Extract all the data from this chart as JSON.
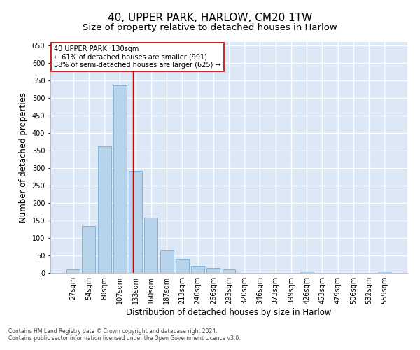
{
  "title1": "40, UPPER PARK, HARLOW, CM20 1TW",
  "title2": "Size of property relative to detached houses in Harlow",
  "xlabel": "Distribution of detached houses by size in Harlow",
  "ylabel": "Number of detached properties",
  "bar_color": "#b8d4ea",
  "bar_edge_color": "#7aadd4",
  "vline_color": "#cc0000",
  "categories": [
    "27sqm",
    "54sqm",
    "80sqm",
    "107sqm",
    "133sqm",
    "160sqm",
    "187sqm",
    "213sqm",
    "240sqm",
    "266sqm",
    "293sqm",
    "320sqm",
    "346sqm",
    "373sqm",
    "399sqm",
    "426sqm",
    "453sqm",
    "479sqm",
    "506sqm",
    "532sqm",
    "559sqm"
  ],
  "values": [
    10,
    135,
    362,
    537,
    292,
    158,
    67,
    40,
    20,
    15,
    10,
    0,
    0,
    0,
    0,
    5,
    0,
    0,
    0,
    0,
    5
  ],
  "ylim": [
    0,
    660
  ],
  "yticks": [
    0,
    50,
    100,
    150,
    200,
    250,
    300,
    350,
    400,
    450,
    500,
    550,
    600,
    650
  ],
  "annotation_title": "40 UPPER PARK: 130sqm",
  "annotation_line1": "← 61% of detached houses are smaller (991)",
  "annotation_line2": "38% of semi-detached houses are larger (625) →",
  "annotation_box_color": "#ffffff",
  "annotation_border_color": "#cc0000",
  "background_color": "#dce8f5",
  "footnote1": "Contains HM Land Registry data © Crown copyright and database right 2024.",
  "footnote2": "Contains public sector information licensed under the Open Government Licence v3.0.",
  "grid_color": "#ffffff",
  "title1_fontsize": 11,
  "title2_fontsize": 9.5,
  "xlabel_fontsize": 8.5,
  "ylabel_fontsize": 8.5,
  "tick_fontsize": 7,
  "annot_fontsize": 7,
  "footnote_fontsize": 5.5
}
